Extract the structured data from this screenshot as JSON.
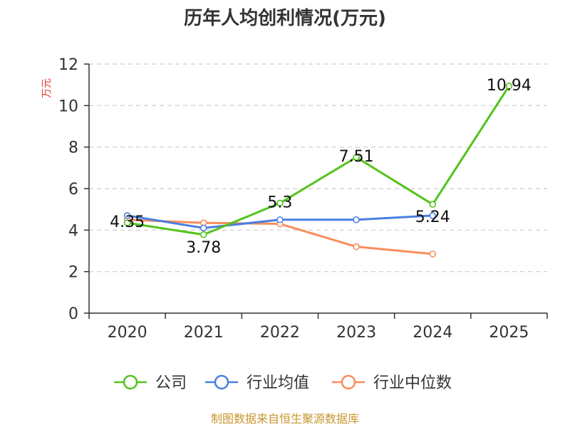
{
  "chart_data": {
    "type": "line",
    "title": "历年人均创利情况(万元)",
    "ylabel": "万元",
    "xlabel": "",
    "categories": [
      "2020",
      "2021",
      "2022",
      "2023",
      "2024",
      "2025"
    ],
    "ylim": [
      0,
      12
    ],
    "yticks": [
      0,
      2,
      4,
      6,
      8,
      10,
      12
    ],
    "grid": true,
    "legend_position": "bottom",
    "series": [
      {
        "name": "公司",
        "color": "#52c41a",
        "values": [
          4.35,
          3.78,
          5.3,
          7.51,
          5.24,
          10.94
        ],
        "labels": [
          "4.35",
          "3.78",
          "5.3",
          "7.51",
          "5.24",
          "10.94"
        ]
      },
      {
        "name": "行业均值",
        "color": "#4a7fe0",
        "values": [
          4.7,
          4.1,
          4.5,
          4.5,
          4.7,
          null
        ]
      },
      {
        "name": "行业中位数",
        "color": "#f98d5a",
        "values": [
          4.5,
          4.35,
          4.3,
          3.2,
          2.85,
          null
        ]
      }
    ],
    "source": "制图数据来自恒生聚源数据库",
    "colors": {
      "axis": "#333333",
      "grid": "#cccccc",
      "unit": "#e53935",
      "source": "#c8962d"
    }
  }
}
